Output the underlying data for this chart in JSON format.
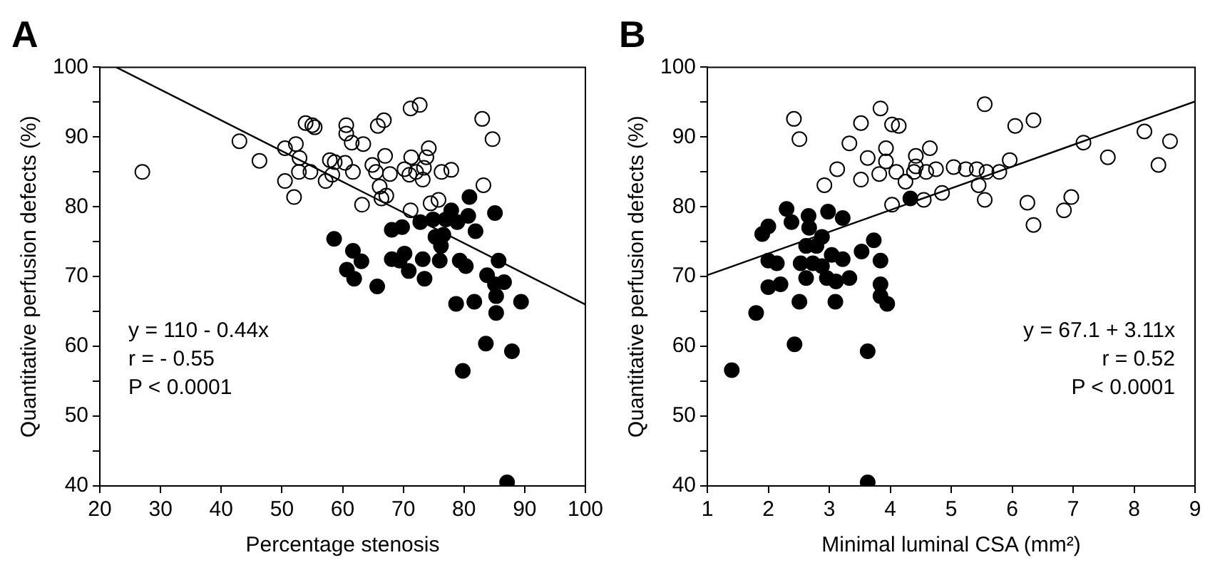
{
  "chart_data": [
    {
      "type": "scatter",
      "title": "A",
      "xlabel": "Percentage stenosis",
      "ylabel": "Quantitative perfusion defects (%)",
      "xlim": [
        20,
        100
      ],
      "xticks": [
        20,
        30,
        40,
        50,
        60,
        70,
        80,
        90,
        100
      ],
      "ylim": [
        40,
        100
      ],
      "yticks": [
        40,
        {
          "value": 45,
          "label": null
        },
        50,
        {
          "value": 55,
          "label": null
        },
        60,
        {
          "value": 65,
          "label": null
        },
        70,
        {
          "value": 75,
          "label": null
        },
        80,
        {
          "value": 85,
          "label": null
        },
        90,
        {
          "value": 95,
          "label": null
        },
        100
      ],
      "grid": false,
      "legend": false,
      "marker": "circle",
      "annotations": [
        "y = 110 - 0.44x",
        "r = - 0.55",
        "P < 0.0001"
      ],
      "series": [
        {
          "color": "#000000",
          "x": [
            27,
            43,
            46.3,
            50.5,
            50.5,
            52,
            52.3,
            52.9,
            52.8,
            53.9,
            55,
            55.4,
            54.7,
            57.2,
            57.9,
            58.7,
            58.3,
            60.6,
            60.6,
            61.5,
            63.4,
            61.7,
            60.4,
            63.2,
            64.9,
            65.8,
            66.8,
            65.5,
            67,
            66.1,
            66.4,
            67.2,
            67.8,
            70.2,
            71,
            71.2,
            72.7,
            71.3,
            72.1,
            73.4,
            73.2,
            73.8,
            74.2,
            71.2,
            74.5,
            75.8,
            76.3,
            77.9,
            83,
            84.7,
            83.2
          ],
          "values": [
            85,
            89.4,
            86.6,
            88.4,
            83.7,
            81.4,
            89,
            87,
            85,
            92,
            91.7,
            91.4,
            85,
            83.7,
            86.7,
            86.4,
            84.6,
            91.7,
            90.5,
            89.2,
            89,
            85,
            86.3,
            80.3,
            86,
            91.6,
            92.4,
            85,
            87.3,
            82.9,
            81.2,
            81.6,
            84.7,
            85.4,
            84.6,
            94.1,
            94.6,
            87.1,
            85,
            85.6,
            83.9,
            87.1,
            88.4,
            79.5,
            80.5,
            81,
            85,
            85.3,
            92.6,
            89.7,
            83.1
          ]
        },
        {
          "color": "#000000",
          "x": [
            58.6,
            61.7,
            63.1,
            60.7,
            61.9,
            65.7,
            68.1,
            69.8,
            68.1,
            70.2,
            69.4,
            70.9,
            72.8,
            73.2,
            73.5,
            74.9,
            75.3,
            76.2,
            76.6,
            76,
            77.9,
            78.9,
            77,
            79.3,
            80.3,
            80.9,
            80.7,
            81.9,
            85.1,
            85.7,
            83.8,
            85.1,
            86.6,
            85.3,
            85.3,
            78.7,
            81.7,
            89.4,
            83.6,
            87.9,
            79.8,
            87.1
          ],
          "values": [
            75.4,
            73.7,
            72.2,
            71,
            69.7,
            68.6,
            76.7,
            77.1,
            72.5,
            73.3,
            72.3,
            70.8,
            77.8,
            72.5,
            69.7,
            78.2,
            75.7,
            74.4,
            76,
            72.3,
            79.5,
            77.8,
            78.2,
            72.3,
            71.5,
            81.4,
            78.7,
            76.5,
            79.1,
            72.3,
            70.2,
            68.9,
            69.2,
            67.2,
            64.8,
            66.1,
            66.4,
            66.4,
            60.4,
            59.3,
            56.5,
            40.5
          ]
        },
        {
          "type": "line",
          "marker": "none",
          "color": "#000000",
          "x": [
            22.7,
            100
          ],
          "values": [
            100,
            66
          ]
        }
      ]
    },
    {
      "type": "scatter",
      "title": "B",
      "xlabel": "Minimal luminal CSA (mm²)",
      "ylabel": "Quantitative perfusion defects (%)",
      "xlim": [
        1,
        9
      ],
      "xticks": [
        1,
        2,
        3,
        4,
        5,
        6,
        7,
        8,
        9
      ],
      "ylim": [
        40,
        100
      ],
      "yticks": [
        40,
        {
          "value": 45,
          "label": null
        },
        50,
        {
          "value": 55,
          "label": null
        },
        60,
        {
          "value": 65,
          "label": null
        },
        70,
        {
          "value": 75,
          "label": null
        },
        80,
        {
          "value": 85,
          "label": null
        },
        90,
        {
          "value": 95,
          "label": null
        },
        100
      ],
      "grid": false,
      "legend": false,
      "marker": "circle",
      "annotations": [
        "y = 67.1 + 3.11x",
        "r = 0.52",
        "P < 0.0001"
      ],
      "series": [
        {
          "color": "#000000",
          "x": [
            2.42,
            2.51,
            2.92,
            3.13,
            3.33,
            3.52,
            3.52,
            3.63,
            3.84,
            3.82,
            3.93,
            3.93,
            4.03,
            4.14,
            4.03,
            4.1,
            4.25,
            4.39,
            4.42,
            4.42,
            4.55,
            4.59,
            4.65,
            4.75,
            4.85,
            5.04,
            5.24,
            5.42,
            5.45,
            5.55,
            5.55,
            5.58,
            5.79,
            5.96,
            6.05,
            6.35,
            6.25,
            6.35,
            6.85,
            6.97,
            7.17,
            7.57,
            8.17,
            8.4,
            8.59
          ],
          "values": [
            92.6,
            89.7,
            83.1,
            85.4,
            89.1,
            92,
            83.9,
            87,
            94.1,
            84.7,
            88.4,
            86.5,
            91.8,
            91.6,
            80.3,
            85,
            83.6,
            85,
            87.3,
            85.8,
            81,
            85,
            88.4,
            85.4,
            82,
            85.7,
            85.4,
            85.4,
            83.1,
            94.7,
            81,
            85,
            85,
            86.7,
            91.6,
            92.4,
            80.6,
            77.4,
            79.5,
            81.4,
            89.2,
            87.1,
            90.8,
            86,
            89.4
          ]
        },
        {
          "color": "#000000",
          "x": [
            1.4,
            1.8,
            1.9,
            2,
            2,
            2,
            2.14,
            2.2,
            2.3,
            2.38,
            2.51,
            2.43,
            2.53,
            2.62,
            2.66,
            2.67,
            2.62,
            2.73,
            2.79,
            2.88,
            2.88,
            2.96,
            2.98,
            3.04,
            3.11,
            3.1,
            3.22,
            3.22,
            3.33,
            3.53,
            3.73,
            3.84,
            3.84,
            3.84,
            3.95,
            3.63,
            3.63,
            4.33
          ],
          "values": [
            56.6,
            64.8,
            76.1,
            77.2,
            72.3,
            68.5,
            71.9,
            68.9,
            79.7,
            77.8,
            66.4,
            60.3,
            71.9,
            74.4,
            78.7,
            77,
            69.8,
            71.9,
            74.4,
            75.7,
            71.5,
            69.8,
            79.3,
            73.1,
            69.3,
            66.4,
            78.4,
            72.5,
            69.8,
            73.6,
            75.2,
            72.3,
            68.9,
            67.2,
            66.1,
            59.3,
            40.5,
            81.2
          ]
        },
        {
          "type": "line",
          "marker": "none",
          "color": "#000000",
          "x": [
            1,
            9
          ],
          "values": [
            70.2,
            95.1
          ]
        }
      ]
    }
  ]
}
